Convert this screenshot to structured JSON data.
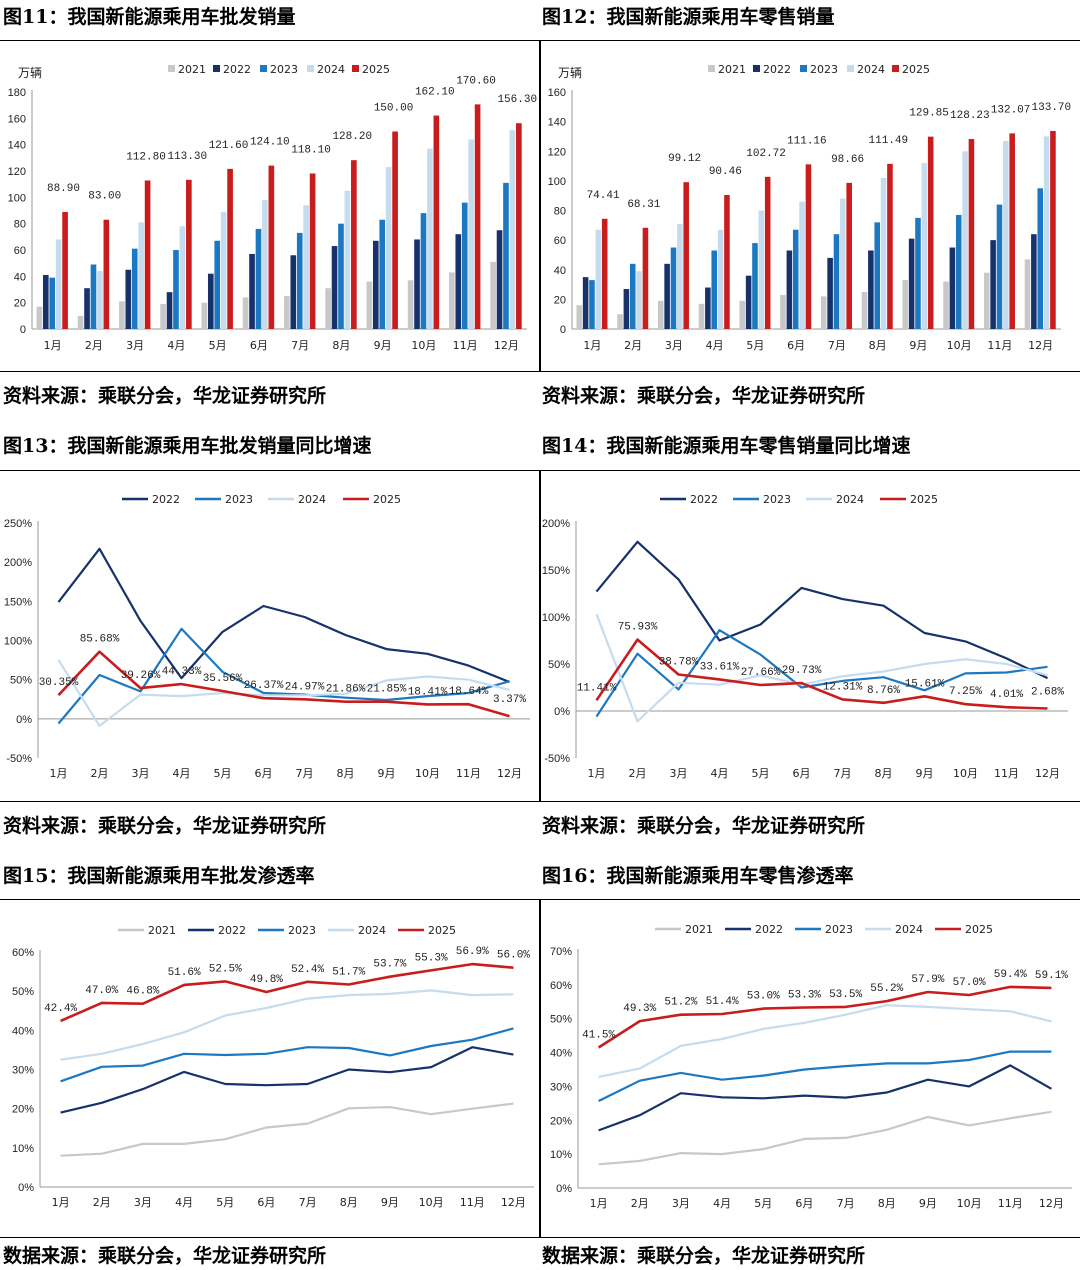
{
  "months": [
    "1月",
    "2月",
    "3月",
    "4月",
    "5月",
    "6月",
    "7月",
    "8月",
    "9月",
    "10月",
    "11月",
    "12月"
  ],
  "colors": {
    "2021": "#c8c8c8",
    "2022": "#17316b",
    "2023": "#1c78c0",
    "2024": "#c5dcef",
    "2025": "#c91c1c",
    "grey_line": "#c8c8c8"
  },
  "titles": {
    "fig11": "图11：我国新能源乘用车批发销量",
    "fig12": "图12：我国新能源乘用车零售销量",
    "fig13": "图13：我国新能源乘用车批发销量同比增速",
    "fig14": "图14：我国新能源乘用车零售销量同比增速",
    "fig15": "图15：我国新能源乘用车批发渗透率",
    "fig16": "图16：我国新能源乘用车零售渗透率"
  },
  "sources": {
    "src11": "资料来源：乘联分会，华龙证券研究所",
    "src12": "资料来源：乘联分会，华龙证券研究所",
    "src13": "资料来源：乘联分会，华龙证券研究所",
    "src14": "资料来源：乘联分会，华龙证券研究所",
    "src15": "数据来源：乘联分会，华龙证券研究所",
    "src16": "数据来源：乘联分会，华龙证券研究所"
  },
  "chart_data": [
    {
      "id": "fig11",
      "type": "bar",
      "unit": "万辆",
      "ylim": [
        0,
        180
      ],
      "yticks": [
        0,
        20,
        40,
        60,
        80,
        100,
        120,
        140,
        160,
        180
      ],
      "categories": [
        "1月",
        "2月",
        "3月",
        "4月",
        "5月",
        "6月",
        "7月",
        "8月",
        "9月",
        "10月",
        "11月",
        "12月"
      ],
      "series": [
        {
          "name": "2021",
          "values": [
            17,
            10,
            21,
            19,
            20,
            24,
            25,
            31,
            36,
            37,
            43,
            51
          ]
        },
        {
          "name": "2022",
          "values": [
            41,
            31,
            45,
            28,
            42,
            57,
            56,
            63,
            67,
            68,
            72,
            75
          ]
        },
        {
          "name": "2023",
          "values": [
            39,
            49,
            61,
            60,
            67,
            76,
            73,
            80,
            83,
            88,
            96,
            111
          ]
        },
        {
          "name": "2024",
          "values": [
            68,
            44,
            81,
            78,
            89,
            98,
            94,
            105,
            123,
            137,
            144,
            151
          ]
        },
        {
          "name": "2025",
          "values": [
            88.9,
            83.0,
            112.8,
            113.3,
            121.6,
            124.1,
            118.1,
            128.2,
            150.0,
            162.1,
            170.6,
            156.3
          ]
        }
      ],
      "data_labels": [
        "88.90",
        "83.00",
        "112.80",
        "113.30",
        "121.60",
        "124.10",
        "118.10",
        "128.20",
        "150.00",
        "162.10",
        "170.60",
        "156.30"
      ]
    },
    {
      "id": "fig12",
      "type": "bar",
      "unit": "万辆",
      "ylim": [
        0,
        160
      ],
      "yticks": [
        0,
        20,
        40,
        60,
        80,
        100,
        120,
        140,
        160
      ],
      "categories": [
        "1月",
        "2月",
        "3月",
        "4月",
        "5月",
        "6月",
        "7月",
        "8月",
        "9月",
        "10月",
        "11月",
        "12月"
      ],
      "series": [
        {
          "name": "2021",
          "values": [
            16,
            10,
            19,
            17,
            19,
            23,
            22,
            25,
            33,
            32,
            38,
            47
          ]
        },
        {
          "name": "2022",
          "values": [
            35,
            27,
            44,
            28,
            36,
            53,
            48,
            53,
            61,
            55,
            60,
            64
          ]
        },
        {
          "name": "2023",
          "values": [
            33,
            44,
            55,
            53,
            58,
            67,
            64,
            72,
            75,
            77,
            84,
            95
          ]
        },
        {
          "name": "2024",
          "values": [
            67,
            39,
            71,
            67,
            80,
            86,
            88,
            102,
            112,
            120,
            127,
            130
          ]
        },
        {
          "name": "2025",
          "values": [
            74.41,
            68.31,
            99.12,
            90.46,
            102.72,
            111.16,
            98.66,
            111.49,
            129.85,
            128.23,
            132.07,
            133.7
          ]
        }
      ],
      "data_labels": [
        "74.41",
        "68.31",
        "99.12",
        "90.46",
        "102.72",
        "111.16",
        "98.66",
        "111.49",
        "129.85",
        "128.23",
        "132.07",
        "133.70"
      ]
    },
    {
      "id": "fig13",
      "type": "line",
      "ylim": [
        -50,
        250
      ],
      "yticks": [
        -50,
        0,
        50,
        100,
        150,
        200,
        250
      ],
      "categories": [
        "1月",
        "2月",
        "3月",
        "4月",
        "5月",
        "6月",
        "7月",
        "8月",
        "9月",
        "10月",
        "11月",
        "12月"
      ],
      "series": [
        {
          "name": "2022",
          "values": [
            149,
            217,
            125,
            52,
            111,
            144,
            130,
            107,
            89,
            83,
            68,
            47
          ]
        },
        {
          "name": "2023",
          "values": [
            -6,
            56,
            35,
            115,
            60,
            33,
            31,
            27,
            24,
            29,
            33,
            48
          ]
        },
        {
          "name": "2024",
          "values": [
            75,
            -9,
            31,
            29,
            33,
            30,
            30,
            32,
            49,
            54,
            50,
            37
          ]
        },
        {
          "name": "2025",
          "values": [
            30.35,
            85.68,
            39.26,
            44.33,
            35.56,
            26.37,
            24.97,
            21.86,
            21.85,
            18.41,
            18.64,
            3.37
          ]
        }
      ],
      "data_labels": [
        "30.35%",
        "85.68%",
        "39.26%",
        "44.33%",
        "35.56%",
        "26.37%",
        "24.97%",
        "21.86%",
        "21.85%",
        "18.41%",
        "18.64%",
        "3.37%"
      ]
    },
    {
      "id": "fig14",
      "type": "line",
      "ylim": [
        -50,
        200
      ],
      "yticks": [
        -50,
        0,
        50,
        100,
        150,
        200
      ],
      "categories": [
        "1月",
        "2月",
        "3月",
        "4月",
        "5月",
        "6月",
        "7月",
        "8月",
        "9月",
        "10月",
        "11月",
        "12月"
      ],
      "series": [
        {
          "name": "2022",
          "values": [
            127,
            180,
            140,
            75,
            92,
            131,
            119,
            112,
            83,
            74,
            56,
            35
          ]
        },
        {
          "name": "2023",
          "values": [
            -6,
            61,
            23,
            86,
            60,
            25,
            32,
            36,
            22,
            40,
            41,
            47
          ]
        },
        {
          "name": "2024",
          "values": [
            103,
            -11,
            30,
            28,
            38,
            28,
            37,
            42,
            50,
            55,
            50,
            38
          ]
        },
        {
          "name": "2025",
          "values": [
            11.41,
            75.93,
            38.78,
            33.61,
            27.66,
            29.73,
            12.31,
            8.76,
            15.61,
            7.25,
            4.01,
            2.68
          ]
        }
      ],
      "data_labels": [
        "11.41%",
        "75.93%",
        "38.78%",
        "33.61%",
        "27.66%",
        "29.73%",
        "12.31%",
        "8.76%",
        "15.61%",
        "7.25%",
        "4.01%",
        "2.68%"
      ]
    },
    {
      "id": "fig15",
      "type": "line",
      "ylim": [
        0,
        60
      ],
      "yticks": [
        0,
        10,
        20,
        30,
        40,
        50,
        60
      ],
      "categories": [
        "1月",
        "2月",
        "3月",
        "4月",
        "5月",
        "6月",
        "7月",
        "8月",
        "9月",
        "10月",
        "11月",
        "12月"
      ],
      "series": [
        {
          "name": "2021",
          "values": [
            8,
            8.5,
            11,
            11,
            12.2,
            15.2,
            16.2,
            20.1,
            20.4,
            18.6,
            20,
            21.3
          ]
        },
        {
          "name": "2022",
          "values": [
            19,
            21.5,
            25,
            29.4,
            26.3,
            26,
            26.3,
            30,
            29.3,
            30.6,
            35.7,
            33.8
          ]
        },
        {
          "name": "2023",
          "values": [
            27,
            30.7,
            31,
            34,
            33.7,
            34,
            35.7,
            35.5,
            33.6,
            36,
            37.6,
            40.5
          ]
        },
        {
          "name": "2024",
          "values": [
            32.5,
            34,
            36.5,
            39.5,
            43.8,
            45.7,
            48.1,
            49,
            49.3,
            50.2,
            49,
            49.2
          ]
        },
        {
          "name": "2025",
          "values": [
            42.4,
            47.0,
            46.8,
            51.6,
            52.5,
            49.8,
            52.4,
            51.7,
            53.7,
            55.3,
            56.9,
            56.0
          ]
        }
      ],
      "data_labels": [
        "42.4%",
        "47.0%",
        "46.8%",
        "51.6%",
        "52.5%",
        "49.8%",
        "52.4%",
        "51.7%",
        "53.7%",
        "55.3%",
        "56.9%",
        "56.0%"
      ]
    },
    {
      "id": "fig16",
      "type": "line",
      "ylim": [
        0,
        70
      ],
      "yticks": [
        0,
        10,
        20,
        30,
        40,
        50,
        60,
        70
      ],
      "categories": [
        "1月",
        "2月",
        "3月",
        "4月",
        "5月",
        "6月",
        "7月",
        "8月",
        "9月",
        "10月",
        "11月",
        "12月"
      ],
      "series": [
        {
          "name": "2021",
          "values": [
            7,
            8,
            10.3,
            10,
            11.5,
            14.5,
            14.8,
            17.2,
            21,
            18.5,
            20.6,
            22.5
          ]
        },
        {
          "name": "2022",
          "values": [
            17,
            21.5,
            28,
            26.8,
            26.5,
            27.3,
            26.7,
            28.2,
            32,
            30,
            36.2,
            29.3
          ]
        },
        {
          "name": "2023",
          "values": [
            25.7,
            31.7,
            34,
            32,
            33.2,
            35,
            36,
            36.8,
            36.8,
            37.8,
            40.3,
            40.3
          ]
        },
        {
          "name": "2024",
          "values": [
            32.8,
            35.3,
            42,
            44,
            47,
            48.8,
            51.2,
            54,
            53.5,
            52.8,
            52.2,
            49.2
          ]
        },
        {
          "name": "2025",
          "values": [
            41.5,
            49.3,
            51.2,
            51.4,
            53.0,
            53.3,
            53.5,
            55.2,
            57.9,
            57.0,
            59.4,
            59.1
          ]
        }
      ],
      "data_labels": [
        "41.5%",
        "49.3%",
        "51.2%",
        "51.4%",
        "53.0%",
        "53.3%",
        "53.5%",
        "55.2%",
        "57.9%",
        "57.0%",
        "59.4%",
        "59.1%"
      ]
    }
  ]
}
